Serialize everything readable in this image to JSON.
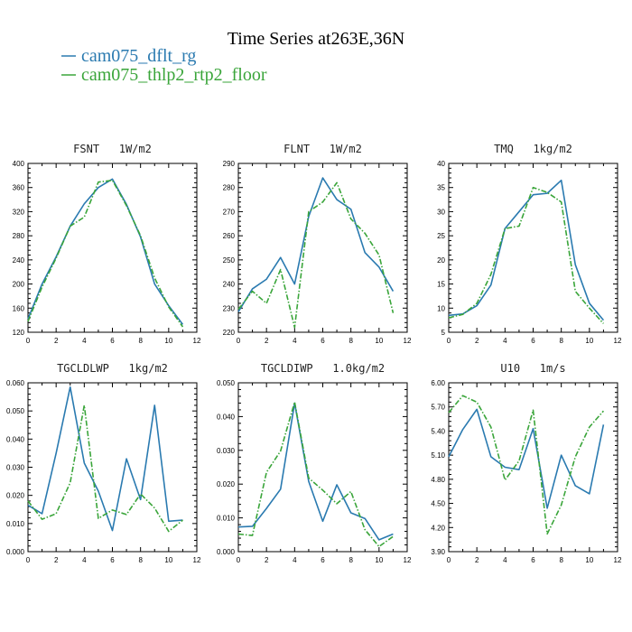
{
  "figure": {
    "title": "Time Series at263E,36N",
    "legend": [
      {
        "name": "cam075_dflt_rg",
        "color": "#2a7ab0"
      },
      {
        "name": "cam075_thlp2_rtp2_floor",
        "color": "#3aa53a"
      }
    ]
  },
  "chart_data": [
    {
      "type": "line",
      "title": "FSNT   1W/m2",
      "x": [
        0,
        1,
        2,
        3,
        4,
        5,
        6,
        7,
        8,
        9,
        10,
        11
      ],
      "xlim": [
        0,
        12
      ],
      "xticks": [
        "0",
        "2",
        "4",
        "6",
        "8",
        "10",
        "12"
      ],
      "ylim": [
        120,
        400
      ],
      "yticks": [
        "120",
        "160",
        "200",
        "240",
        "280",
        "320",
        "360",
        "400"
      ],
      "grid": false,
      "series": [
        {
          "name": "cam075_dflt_rg",
          "color": "#2a7ab0",
          "dashed": false,
          "values": [
            142,
            200,
            245,
            296,
            333,
            360,
            374,
            332,
            278,
            200,
            164,
            133
          ]
        },
        {
          "name": "cam075_thlp2_rtp2_floor",
          "color": "#3aa53a",
          "dashed": true,
          "values": [
            138,
            195,
            243,
            296,
            311,
            369,
            372,
            330,
            280,
            210,
            162,
            129
          ]
        }
      ]
    },
    {
      "type": "line",
      "title": "FLNT   1W/m2",
      "x": [
        0,
        1,
        2,
        3,
        4,
        5,
        6,
        7,
        8,
        9,
        10,
        11
      ],
      "xlim": [
        0,
        12
      ],
      "xticks": [
        "0",
        "2",
        "4",
        "6",
        "8",
        "10",
        "12"
      ],
      "ylim": [
        220,
        290
      ],
      "yticks": [
        "220",
        "230",
        "240",
        "250",
        "260",
        "270",
        "280",
        "290"
      ],
      "grid": false,
      "series": [
        {
          "name": "cam075_dflt_rg",
          "color": "#2a7ab0",
          "dashed": false,
          "values": [
            228.5,
            238,
            242,
            251,
            240,
            268,
            284,
            275,
            271,
            253,
            247,
            237
          ]
        },
        {
          "name": "cam075_thlp2_rtp2_floor",
          "color": "#3aa53a",
          "dashed": true,
          "values": [
            229.5,
            237,
            232,
            246,
            222,
            270,
            274,
            282,
            267,
            261,
            252,
            228
          ]
        }
      ]
    },
    {
      "type": "line",
      "title": "TMQ   1kg/m2",
      "x": [
        0,
        1,
        2,
        3,
        4,
        5,
        6,
        7,
        8,
        9,
        10,
        11
      ],
      "xlim": [
        0,
        12
      ],
      "xticks": [
        "0",
        "2",
        "4",
        "6",
        "8",
        "10",
        "12"
      ],
      "ylim": [
        5,
        40
      ],
      "yticks": [
        "5",
        "10",
        "15",
        "20",
        "25",
        "30",
        "35",
        "40"
      ],
      "grid": false,
      "series": [
        {
          "name": "cam075_dflt_rg",
          "color": "#2a7ab0",
          "dashed": false,
          "values": [
            8.5,
            8.8,
            10.5,
            14.8,
            26.5,
            30,
            33.5,
            33.8,
            36.5,
            19,
            11,
            7.5
          ]
        },
        {
          "name": "cam075_thlp2_rtp2_floor",
          "color": "#3aa53a",
          "dashed": true,
          "values": [
            8,
            8.7,
            11,
            17,
            26.5,
            27,
            35,
            34,
            32,
            13.5,
            10,
            6.8
          ]
        }
      ]
    },
    {
      "type": "line",
      "title": "TGCLDLWP   1kg/m2",
      "x": [
        0,
        1,
        2,
        3,
        4,
        5,
        6,
        7,
        8,
        9,
        10,
        11
      ],
      "xlim": [
        0,
        12
      ],
      "xticks": [
        "0",
        "2",
        "4",
        "6",
        "8",
        "10",
        "12"
      ],
      "ylim": [
        0,
        0.06
      ],
      "yticks": [
        "0.000",
        "0.010",
        "0.020",
        "0.030",
        "0.040",
        "0.050",
        "0.060"
      ],
      "grid": false,
      "series": [
        {
          "name": "cam075_dflt_rg",
          "color": "#2a7ab0",
          "dashed": false,
          "values": [
            0.0165,
            0.0135,
            0.035,
            0.0585,
            0.0315,
            0.0215,
            0.0075,
            0.033,
            0.0185,
            0.052,
            0.0108,
            0.0112
          ]
        },
        {
          "name": "cam075_thlp2_rtp2_floor",
          "color": "#3aa53a",
          "dashed": true,
          "values": [
            0.018,
            0.0115,
            0.0135,
            0.0245,
            0.052,
            0.0118,
            0.0148,
            0.0132,
            0.0205,
            0.0155,
            0.0072,
            0.0112
          ]
        }
      ]
    },
    {
      "type": "line",
      "title": "TGCLDIWP   1.0kg/m2",
      "x": [
        0,
        1,
        2,
        3,
        4,
        5,
        6,
        7,
        8,
        9,
        10,
        11
      ],
      "xlim": [
        0,
        12
      ],
      "xticks": [
        "0",
        "2",
        "4",
        "6",
        "8",
        "10",
        "12"
      ],
      "ylim": [
        0,
        0.05
      ],
      "yticks": [
        "0.000",
        "0.010",
        "0.020",
        "0.030",
        "0.040",
        "0.050"
      ],
      "grid": false,
      "series": [
        {
          "name": "cam075_dflt_rg",
          "color": "#2a7ab0",
          "dashed": false,
          "values": [
            0.0073,
            0.0075,
            0.0128,
            0.0185,
            0.044,
            0.0208,
            0.009,
            0.0198,
            0.0115,
            0.0098,
            0.0035,
            0.0052
          ]
        },
        {
          "name": "cam075_thlp2_rtp2_floor",
          "color": "#3aa53a",
          "dashed": true,
          "values": [
            0.0052,
            0.0048,
            0.0235,
            0.0298,
            0.0443,
            0.0218,
            0.0182,
            0.0142,
            0.0178,
            0.0065,
            0.0015,
            0.0045
          ]
        }
      ]
    },
    {
      "type": "line",
      "title": "U10   1m/s",
      "x": [
        0,
        1,
        2,
        3,
        4,
        5,
        6,
        7,
        8,
        9,
        10,
        11
      ],
      "xlim": [
        0,
        12
      ],
      "xticks": [
        "0",
        "2",
        "4",
        "6",
        "8",
        "10",
        "12"
      ],
      "ylim": [
        3.9,
        6.0
      ],
      "yticks": [
        "3.90",
        "4.20",
        "4.50",
        "4.80",
        "5.10",
        "5.40",
        "5.70",
        "6.00"
      ],
      "grid": false,
      "series": [
        {
          "name": "cam075_dflt_rg",
          "color": "#2a7ab0",
          "dashed": false,
          "values": [
            5.08,
            5.42,
            5.67,
            5.08,
            4.95,
            4.92,
            5.43,
            4.44,
            5.1,
            4.72,
            4.62,
            5.48
          ]
        },
        {
          "name": "cam075_thlp2_rtp2_floor",
          "color": "#3aa53a",
          "dashed": true,
          "values": [
            5.63,
            5.84,
            5.76,
            5.45,
            4.79,
            5.03,
            5.66,
            4.12,
            4.48,
            5.08,
            5.45,
            5.65
          ]
        }
      ]
    }
  ]
}
